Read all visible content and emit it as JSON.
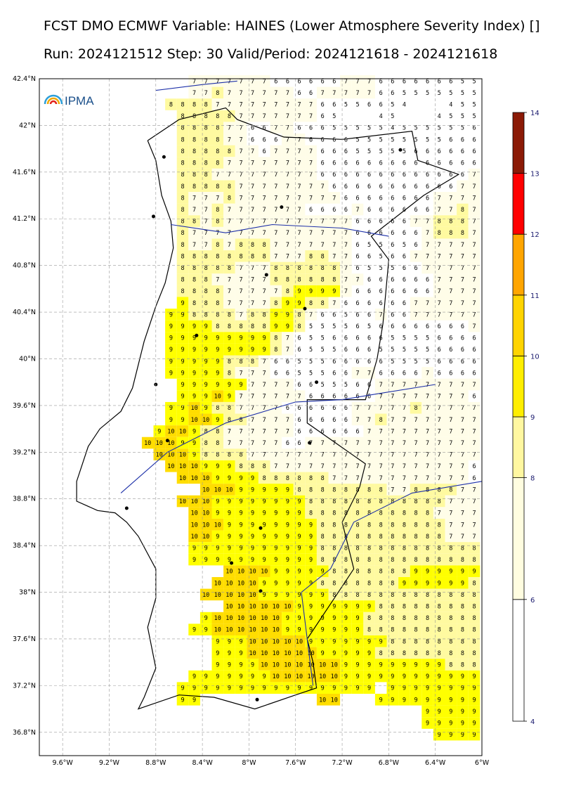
{
  "title_line1": "FCST DMO ECMWF Variable: HAINES (Lower Atmosphere Severity Index) []",
  "title_line2": "Run: 2024121512 Step: 30 Valid/Period: 2024121618 - 2024121618",
  "logo_text": "IPMA",
  "lat_ticks": [
    "42.4°N",
    "42°N",
    "41.6°N",
    "41.2°N",
    "40.8°N",
    "40.4°N",
    "40°N",
    "39.6°N",
    "39.2°N",
    "38.8°N",
    "38.4°N",
    "38°N",
    "37.6°N",
    "37.2°N",
    "36.8°N"
  ],
  "lon_ticks": [
    "9.6°W",
    "9.2°W",
    "8.8°W",
    "8.4°W",
    "8°W",
    "7.6°W",
    "7.2°W",
    "6.8°W",
    "6.4°W",
    "6°W"
  ],
  "colorbar": {
    "labels": [
      "4",
      "6",
      "8",
      "9",
      "10",
      "11",
      "12",
      "13",
      "14"
    ],
    "colors": [
      "#ffffff",
      "#fffde0",
      "#fff7a0",
      "#ffee00",
      "#ffd400",
      "#ffa500",
      "#ff0000",
      "#8b1a06"
    ]
  },
  "grid_rows": [
    {
      "lat": "42.38",
      "cells": "....7777777666666777666666655"
    },
    {
      "lat": "42.28",
      "cells": "....7787777776677777665555555"
    },
    {
      "lat": "42.18",
      "cells": "....888877777777766556654...455"
    },
    {
      "lat": "42.08",
      "cells": "....88888777777765...45...4555"
    },
    {
      "lat": "41.98",
      "cells": "....88887766776665555545555556"
    },
    {
      "lat": "41.88",
      "cells": "....88887766677666655555555666"
    },
    {
      "lat": "41.78",
      "cells": "....88888776777766655555666666"
    },
    {
      "lat": "41.68",
      "cells": "....88887777777766666666666666"
    },
    {
      "lat": "41.58",
      "cells": "....88877777777766666666666667"
    },
    {
      "lat": "41.48",
      "cells": "....88888777777776666666666677"
    },
    {
      "lat": "41.38",
      "cells": "....87778777777777666666667777"
    },
    {
      "lat": "41.28",
      "cells": "....87787777777666676666667787"
    },
    {
      "lat": "41.18",
      "cells": "....88787777777777766666778887"
    },
    {
      "lat": "41.08",
      "cells": "....87777777777777766666678887"
    },
    {
      "lat": "40.98",
      "cells": "....87787888777777765565677777"
    },
    {
      "lat": "40.88",
      "cells": "....88888888777887766566777777"
    },
    {
      "lat": "40.78",
      "cells": "....88888777888888765556677777"
    },
    {
      "lat": "40.68",
      "cells": "....88877777888888776666667777"
    },
    {
      "lat": "40.58",
      "cells": "....88887777789999766666667777"
    },
    {
      "lat": "40.48",
      "cells": "....98887777899887666666777777"
    },
    {
      "lat": "40.38",
      "cells": "...998888788998766566766777777"
    },
    {
      "lat": "40.28",
      "cells": "...999988888998555565666666667"
    },
    {
      "lat": "40.18",
      "cells": "...999999999876556666655556666"
    },
    {
      "lat": "40.08",
      "cells": "...999999999876555666555556666"
    },
    {
      "lat": "39.98",
      "cells": "...999998887665556666655556666"
    },
    {
      "lat": "39.88",
      "cells": "...999998777665556677666676666"
    },
    {
      "lat": "39.78",
      "cells": "...99999977776655566777777777"
    },
    {
      "lat": "39.68",
      "cells": "..999109777777666666777777776"
    },
    {
      "lat": "39.58",
      "cells": "..9910988777766666677777877777"
    },
    {
      "lat": "39.48",
      "cells": ".99101098877776666677877777777"
    },
    {
      "lat": "39.38",
      "cells": ".910109887777776666667777777777"
    },
    {
      "lat": "39.28",
      "cells": "10101099887777766777777777777777"
    },
    {
      "lat": "39.18",
      "cells": "1010109888877777777777777777777"
    },
    {
      "lat": "39.08",
      "cells": "101010999888777777777777777776"
    },
    {
      "lat": "38.98",
      "cells": "10101099998888887777777777776"
    },
    {
      "lat": "38.88",
      "cells": "101010999998888888877888877"
    },
    {
      "lat": "38.78",
      "cells": "10101099999999888888888888777"
    },
    {
      "lat": "38.68",
      "cells": ".101099999999888888888887777"
    },
    {
      "lat": "38.58",
      "cells": ".1010109999999988888888888777"
    },
    {
      "lat": "38.48",
      "cells": ".101099999999988888888888777"
    },
    {
      "lat": "38.38",
      "cells": "..9999999999988888888888888"
    },
    {
      "lat": "38.28",
      "cells": "...9999999999988888888888888"
    },
    {
      "lat": "38.18",
      "cells": "...10101010999998888888999999"
    },
    {
      "lat": "38.08",
      "cells": "...101010109999988888889999998"
    },
    {
      "lat": "37.98",
      "cells": "..10101010109999998888888888888"
    },
    {
      "lat": "37.88",
      "cells": "...1010101010109999999888888888"
    },
    {
      "lat": "37.78",
      "cells": "..910101010101099999998888888888"
    },
    {
      "lat": "37.68",
      "cells": "..9910101010101099999998888888888"
    },
    {
      "lat": "37.58",
      "cells": "..9991010101010999999988888888"
    },
    {
      "lat": "37.48",
      "cells": "..99910101010101099999888888888"
    },
    {
      "lat": "37.38",
      "cells": "..999910101010101010999999999888"
    },
    {
      "lat": "37.28",
      "cells": "..9999999101010101010999999999999"
    },
    {
      "lat": "37.18",
      "cells": "..99999999999999999.99999999"
    },
    {
      "lat": "37.08",
      "cells": "..99..........1010...999999999"
    },
    {
      "lat": "36.98",
      "cells": "........................99999"
    },
    {
      "lat": "36.88",
      "cells": "........................99999"
    },
    {
      "lat": "36.78",
      "cells": "..........................9999"
    }
  ]
}
